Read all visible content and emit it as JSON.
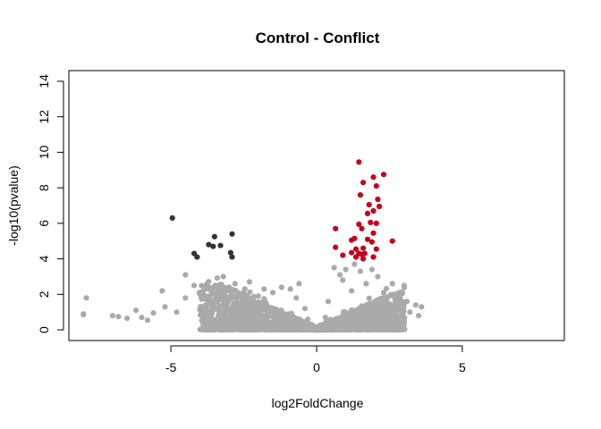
{
  "chart_data": {
    "type": "scatter",
    "title": "Control - Conflict",
    "xlabel": "log2FoldChange",
    "ylabel": "-log10(pvalue)",
    "xlim": [
      -8.5,
      8.5
    ],
    "ylim": [
      -0.6,
      14.6
    ],
    "x_ticks": [
      -5,
      0,
      5
    ],
    "x_tick_labels": [
      "-5",
      "0",
      "5"
    ],
    "y_ticks": [
      0,
      2,
      4,
      6,
      8,
      10,
      12,
      14
    ],
    "y_tick_labels": [
      "0",
      "2",
      "4",
      "6",
      "8",
      "10",
      "12",
      "14"
    ],
    "grid": false,
    "legend": "none",
    "colors": {
      "not_significant": "#aaaaaa",
      "downregulated": "#333333",
      "upregulated": "#c3001e"
    },
    "series": [
      {
        "color": "#333333",
        "points": [
          {
            "x": -4.95,
            "y": 6.3
          },
          {
            "x": -3.5,
            "y": 5.25
          },
          {
            "x": -2.9,
            "y": 5.4
          },
          {
            "x": -3.7,
            "y": 4.8
          },
          {
            "x": -3.55,
            "y": 4.7
          },
          {
            "x": -3.3,
            "y": 4.75
          },
          {
            "x": -4.2,
            "y": 4.3
          },
          {
            "x": -4.1,
            "y": 4.1
          },
          {
            "x": -2.95,
            "y": 4.35
          },
          {
            "x": -2.9,
            "y": 4.1
          }
        ]
      },
      {
        "color": "#c3001e",
        "points": [
          {
            "x": 1.45,
            "y": 9.45
          },
          {
            "x": 2.3,
            "y": 8.75
          },
          {
            "x": 1.95,
            "y": 8.6
          },
          {
            "x": 1.6,
            "y": 8.3
          },
          {
            "x": 2.05,
            "y": 8.1
          },
          {
            "x": 1.5,
            "y": 7.6
          },
          {
            "x": 2.1,
            "y": 7.35
          },
          {
            "x": 1.8,
            "y": 7.05
          },
          {
            "x": 2.15,
            "y": 6.95
          },
          {
            "x": 1.95,
            "y": 6.7
          },
          {
            "x": 1.75,
            "y": 6.55
          },
          {
            "x": 1.85,
            "y": 6.05
          },
          {
            "x": 2.05,
            "y": 6.0
          },
          {
            "x": 1.45,
            "y": 5.95
          },
          {
            "x": 0.65,
            "y": 5.7
          },
          {
            "x": 1.55,
            "y": 5.7
          },
          {
            "x": 1.95,
            "y": 5.45
          },
          {
            "x": 1.3,
            "y": 5.15
          },
          {
            "x": 1.2,
            "y": 5.05
          },
          {
            "x": 1.75,
            "y": 5.1
          },
          {
            "x": 2.6,
            "y": 5.0
          },
          {
            "x": 1.9,
            "y": 4.95
          },
          {
            "x": 0.65,
            "y": 4.65
          },
          {
            "x": 1.35,
            "y": 4.55
          },
          {
            "x": 1.6,
            "y": 4.6
          },
          {
            "x": 2.05,
            "y": 4.55
          },
          {
            "x": 1.2,
            "y": 4.35
          },
          {
            "x": 1.45,
            "y": 4.3
          },
          {
            "x": 1.55,
            "y": 4.25
          },
          {
            "x": 1.65,
            "y": 4.3
          },
          {
            "x": 0.9,
            "y": 4.2
          },
          {
            "x": 1.35,
            "y": 4.1
          },
          {
            "x": 1.95,
            "y": 4.1
          },
          {
            "x": 1.6,
            "y": 4.0
          }
        ]
      },
      {
        "color": "#aaaaaa",
        "points": [
          {
            "x": -7.9,
            "y": 1.8
          },
          {
            "x": -8.0,
            "y": 0.9
          },
          {
            "x": -8.0,
            "y": 0.85
          },
          {
            "x": -7.0,
            "y": 0.8
          },
          {
            "x": -6.8,
            "y": 0.75
          },
          {
            "x": -6.5,
            "y": 0.65
          },
          {
            "x": -6.2,
            "y": 1.1
          },
          {
            "x": -6.0,
            "y": 0.7
          },
          {
            "x": -5.8,
            "y": 0.55
          },
          {
            "x": -5.6,
            "y": 0.95
          },
          {
            "x": -5.3,
            "y": 2.2
          },
          {
            "x": -5.2,
            "y": 1.3
          },
          {
            "x": -4.8,
            "y": 1.0
          },
          {
            "x": -4.5,
            "y": 1.8
          },
          {
            "x": -4.5,
            "y": 3.1
          },
          {
            "x": -4.2,
            "y": 2.5
          },
          {
            "x": -4.0,
            "y": 2.0
          },
          {
            "x": -3.8,
            "y": 2.5
          },
          {
            "x": -3.6,
            "y": 1.5
          },
          {
            "x": -3.5,
            "y": 2.4
          },
          {
            "x": -3.2,
            "y": 3.0
          },
          {
            "x": -3.0,
            "y": 2.4
          },
          {
            "x": -2.8,
            "y": 2.6
          },
          {
            "x": -2.5,
            "y": 2.1
          },
          {
            "x": -2.3,
            "y": 2.7
          },
          {
            "x": -2.0,
            "y": 1.9
          },
          {
            "x": -1.8,
            "y": 2.3
          },
          {
            "x": -1.5,
            "y": 2.1
          },
          {
            "x": -1.2,
            "y": 2.4
          },
          {
            "x": -0.9,
            "y": 2.3
          },
          {
            "x": -0.6,
            "y": 2.6
          },
          {
            "x": -0.7,
            "y": 1.8
          },
          {
            "x": -0.4,
            "y": 1.2
          },
          {
            "x": -0.3,
            "y": 0.6
          },
          {
            "x": 0.3,
            "y": 0.7
          },
          {
            "x": 0.4,
            "y": 1.6
          },
          {
            "x": 0.6,
            "y": 3.5
          },
          {
            "x": 0.8,
            "y": 3.1
          },
          {
            "x": 0.9,
            "y": 2.8
          },
          {
            "x": 1.0,
            "y": 3.4
          },
          {
            "x": 1.2,
            "y": 2.2
          },
          {
            "x": 1.3,
            "y": 3.7
          },
          {
            "x": 1.5,
            "y": 3.3
          },
          {
            "x": 1.7,
            "y": 2.6
          },
          {
            "x": 1.9,
            "y": 3.4
          },
          {
            "x": 2.1,
            "y": 3.0
          },
          {
            "x": 2.3,
            "y": 2.1
          },
          {
            "x": 2.4,
            "y": 1.6
          },
          {
            "x": 2.6,
            "y": 2.6
          },
          {
            "x": 2.8,
            "y": 2.0
          },
          {
            "x": 3.0,
            "y": 2.5
          },
          {
            "x": 3.1,
            "y": 1.6
          },
          {
            "x": 3.2,
            "y": 1.0
          },
          {
            "x": 3.4,
            "y": 1.4
          },
          {
            "x": 3.5,
            "y": 0.8
          },
          {
            "x": 3.6,
            "y": 1.3
          }
        ]
      }
    ]
  }
}
